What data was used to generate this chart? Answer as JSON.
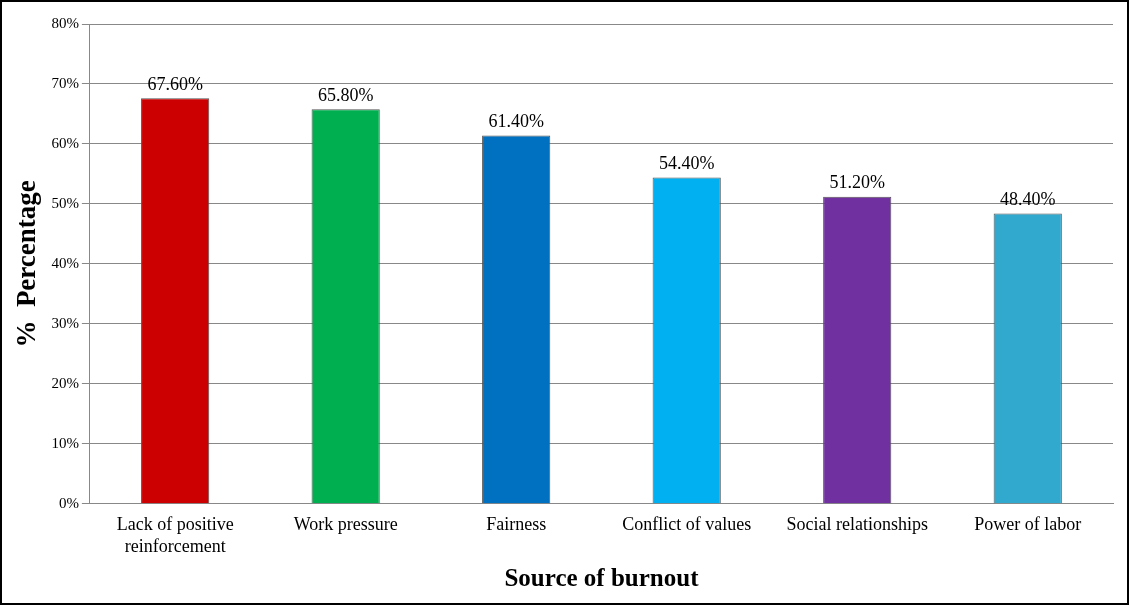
{
  "chart_data": {
    "type": "bar",
    "xlabel": "Source of burnout",
    "ylabel": "%  Percentage",
    "categories": [
      "Lack of positive reinforcement",
      "Work pressure",
      "Fairness",
      "Conflict of values",
      "Social relationships",
      "Power of labor"
    ],
    "values": [
      67.6,
      65.8,
      61.4,
      54.4,
      51.2,
      48.4
    ],
    "colors": [
      "#cc0000",
      "#00b050",
      "#0070c0",
      "#00b0f0",
      "#7030a0",
      "#31a9cf"
    ],
    "value_labels": [
      "67.60%",
      "65.80%",
      "61.40%",
      "54.40%",
      "51.20%",
      "48.40%"
    ],
    "ylim": [
      0,
      80
    ],
    "yticks": [
      {
        "value": 0,
        "label": "0%"
      },
      {
        "value": 10,
        "label": "10%"
      },
      {
        "value": 20,
        "label": "20%"
      },
      {
        "value": 30,
        "label": "30%"
      },
      {
        "value": 40,
        "label": "40%"
      },
      {
        "value": 50,
        "label": "50%"
      },
      {
        "value": 60,
        "label": "60%"
      },
      {
        "value": 70,
        "label": "70%"
      },
      {
        "value": 80,
        "label": "80%"
      }
    ],
    "grid": "y",
    "legend": false
  }
}
